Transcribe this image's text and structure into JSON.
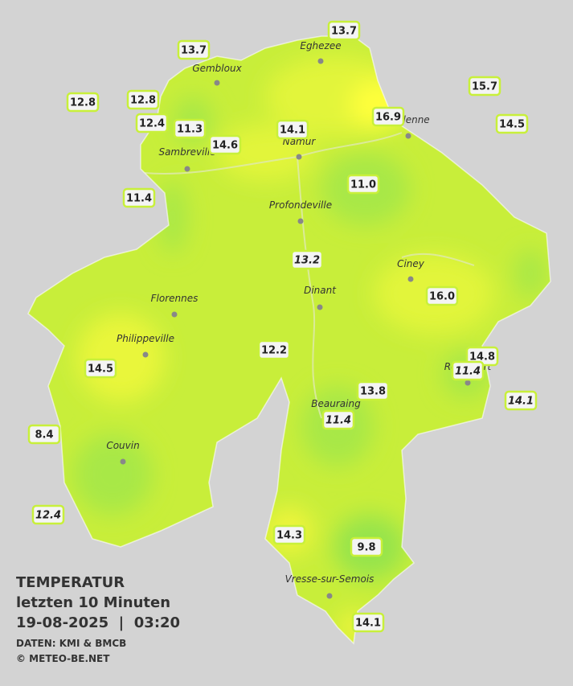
{
  "caption": {
    "title": "TEMPERATUR",
    "period": "letzten 10 Minuten",
    "datetime": "19-08-2025  |  03:20",
    "source": "DATEN: KMI & BMCB",
    "copyright": "© METEO-BE.NET"
  },
  "towns": [
    "Eghezee",
    "Gembloux",
    "Andenne",
    "Namur",
    "Sambreville",
    "Profondeville",
    "Ciney",
    "Dinant",
    "Florennes",
    "Philippeville",
    "Rochefort",
    "Beauraing",
    "Couvin",
    "Vresse-sur-Semois"
  ],
  "stations": [
    "13.7",
    "13.7",
    "15.7",
    "12.8",
    "12.8",
    "12.4",
    "11.3",
    "16.9",
    "14.5",
    "14.1",
    "14.6",
    "11.0",
    "11.4",
    "13.2",
    "16.0",
    "12.2",
    "14.8",
    "11.4",
    "14.5",
    "14.1",
    "13.8",
    "11.4",
    "8.4",
    "12.4",
    "14.3",
    "9.8",
    "14.1"
  ]
}
